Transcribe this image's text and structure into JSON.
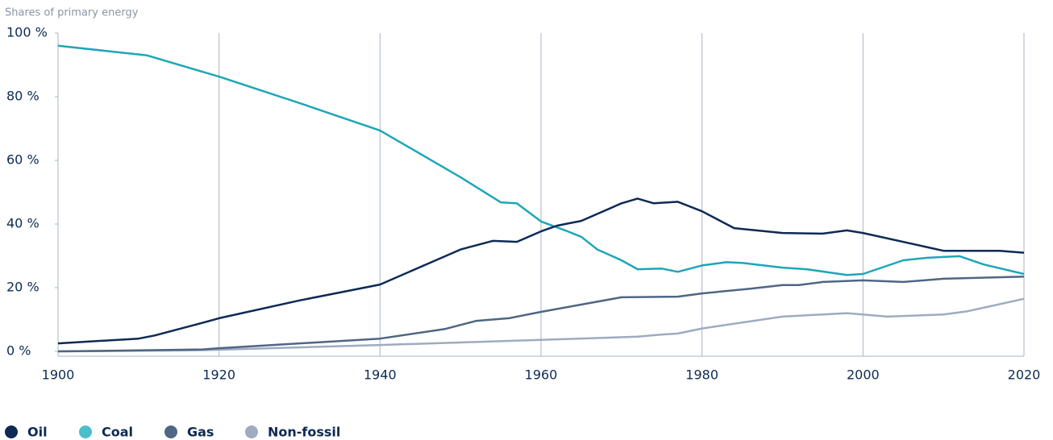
{
  "chart_data": {
    "type": "line",
    "subtitle": "Shares of primary energy",
    "xlim": [
      1900,
      2020
    ],
    "xticks": [
      1900,
      1920,
      1940,
      1960,
      1980,
      2000,
      2020
    ],
    "ylim": [
      0,
      100
    ],
    "yticks": [
      {
        "value": 0,
        "label": "0 %"
      },
      {
        "value": 20,
        "label": "20 %"
      },
      {
        "value": 40,
        "label": "40 %"
      },
      {
        "value": 60,
        "label": "60 %"
      },
      {
        "value": 80,
        "label": "80 %"
      },
      {
        "value": 100,
        "label": "100 %"
      }
    ],
    "grid": "x",
    "legend": "bottom-left",
    "series": [
      {
        "name": "Oil",
        "color": "#0d2a54",
        "legend_color": "#0d2a54",
        "x": [
          1900,
          1910,
          1912,
          1918,
          1920,
          1930,
          1940,
          1950,
          1954,
          1957,
          1960,
          1962,
          1965,
          1970,
          1972,
          1974,
          1977,
          1980,
          1984,
          1990,
          1995,
          1998,
          2000,
          2010,
          2017,
          2020
        ],
        "values": [
          2.5,
          4,
          5,
          9,
          10.4,
          16,
          21,
          32,
          34.7,
          34.4,
          37.7,
          39.5,
          41,
          46.5,
          48,
          46.5,
          47,
          44,
          38.7,
          37.2,
          37,
          38,
          37.2,
          31.6,
          31.6,
          31
        ]
      },
      {
        "name": "Coal",
        "color": "#1ea6b8",
        "legend_color": "#4bbfcc",
        "x": [
          1900,
          1911,
          1920,
          1930,
          1940,
          1950,
          1955,
          1957,
          1960,
          1963,
          1965,
          1967,
          1970,
          1972,
          1975,
          1977,
          1980,
          1983,
          1985,
          1990,
          1993,
          1998,
          2000,
          2005,
          2008,
          2012,
          2015,
          2020
        ],
        "values": [
          96,
          93,
          86.3,
          78,
          69.4,
          54.7,
          46.8,
          46.5,
          40.8,
          38,
          36,
          32,
          28.6,
          25.8,
          26,
          25,
          27,
          28,
          27.8,
          26.3,
          25.8,
          24,
          24.3,
          28.6,
          29.4,
          29.9,
          27.3,
          24.3
        ]
      },
      {
        "name": "Gas",
        "color": "#4f6684",
        "legend_color": "#4f6684",
        "x": [
          1900,
          1910,
          1918,
          1920,
          1940,
          1948,
          1952,
          1956,
          1960,
          1970,
          1977,
          1980,
          1986,
          1990,
          1992,
          1995,
          2000,
          2005,
          2010,
          2020
        ],
        "values": [
          0,
          0.3,
          0.6,
          1,
          4,
          7,
          9.6,
          10.4,
          12.4,
          17,
          17.2,
          18.2,
          19.7,
          20.8,
          20.8,
          21.8,
          22.3,
          21.8,
          22.8,
          23.5
        ]
      },
      {
        "name": "Non-fossil",
        "color": "#9eabc0",
        "legend_color": "#9eabc0",
        "x": [
          1900,
          1917,
          1940,
          1960,
          1972,
          1975,
          1977,
          1980,
          1990,
          1998,
          2000,
          2003,
          2010,
          2013,
          2020
        ],
        "values": [
          0,
          0.3,
          2,
          3.6,
          4.6,
          5.3,
          5.6,
          7.2,
          10.9,
          12,
          11.6,
          10.9,
          11.6,
          12.6,
          16.5
        ]
      }
    ]
  }
}
